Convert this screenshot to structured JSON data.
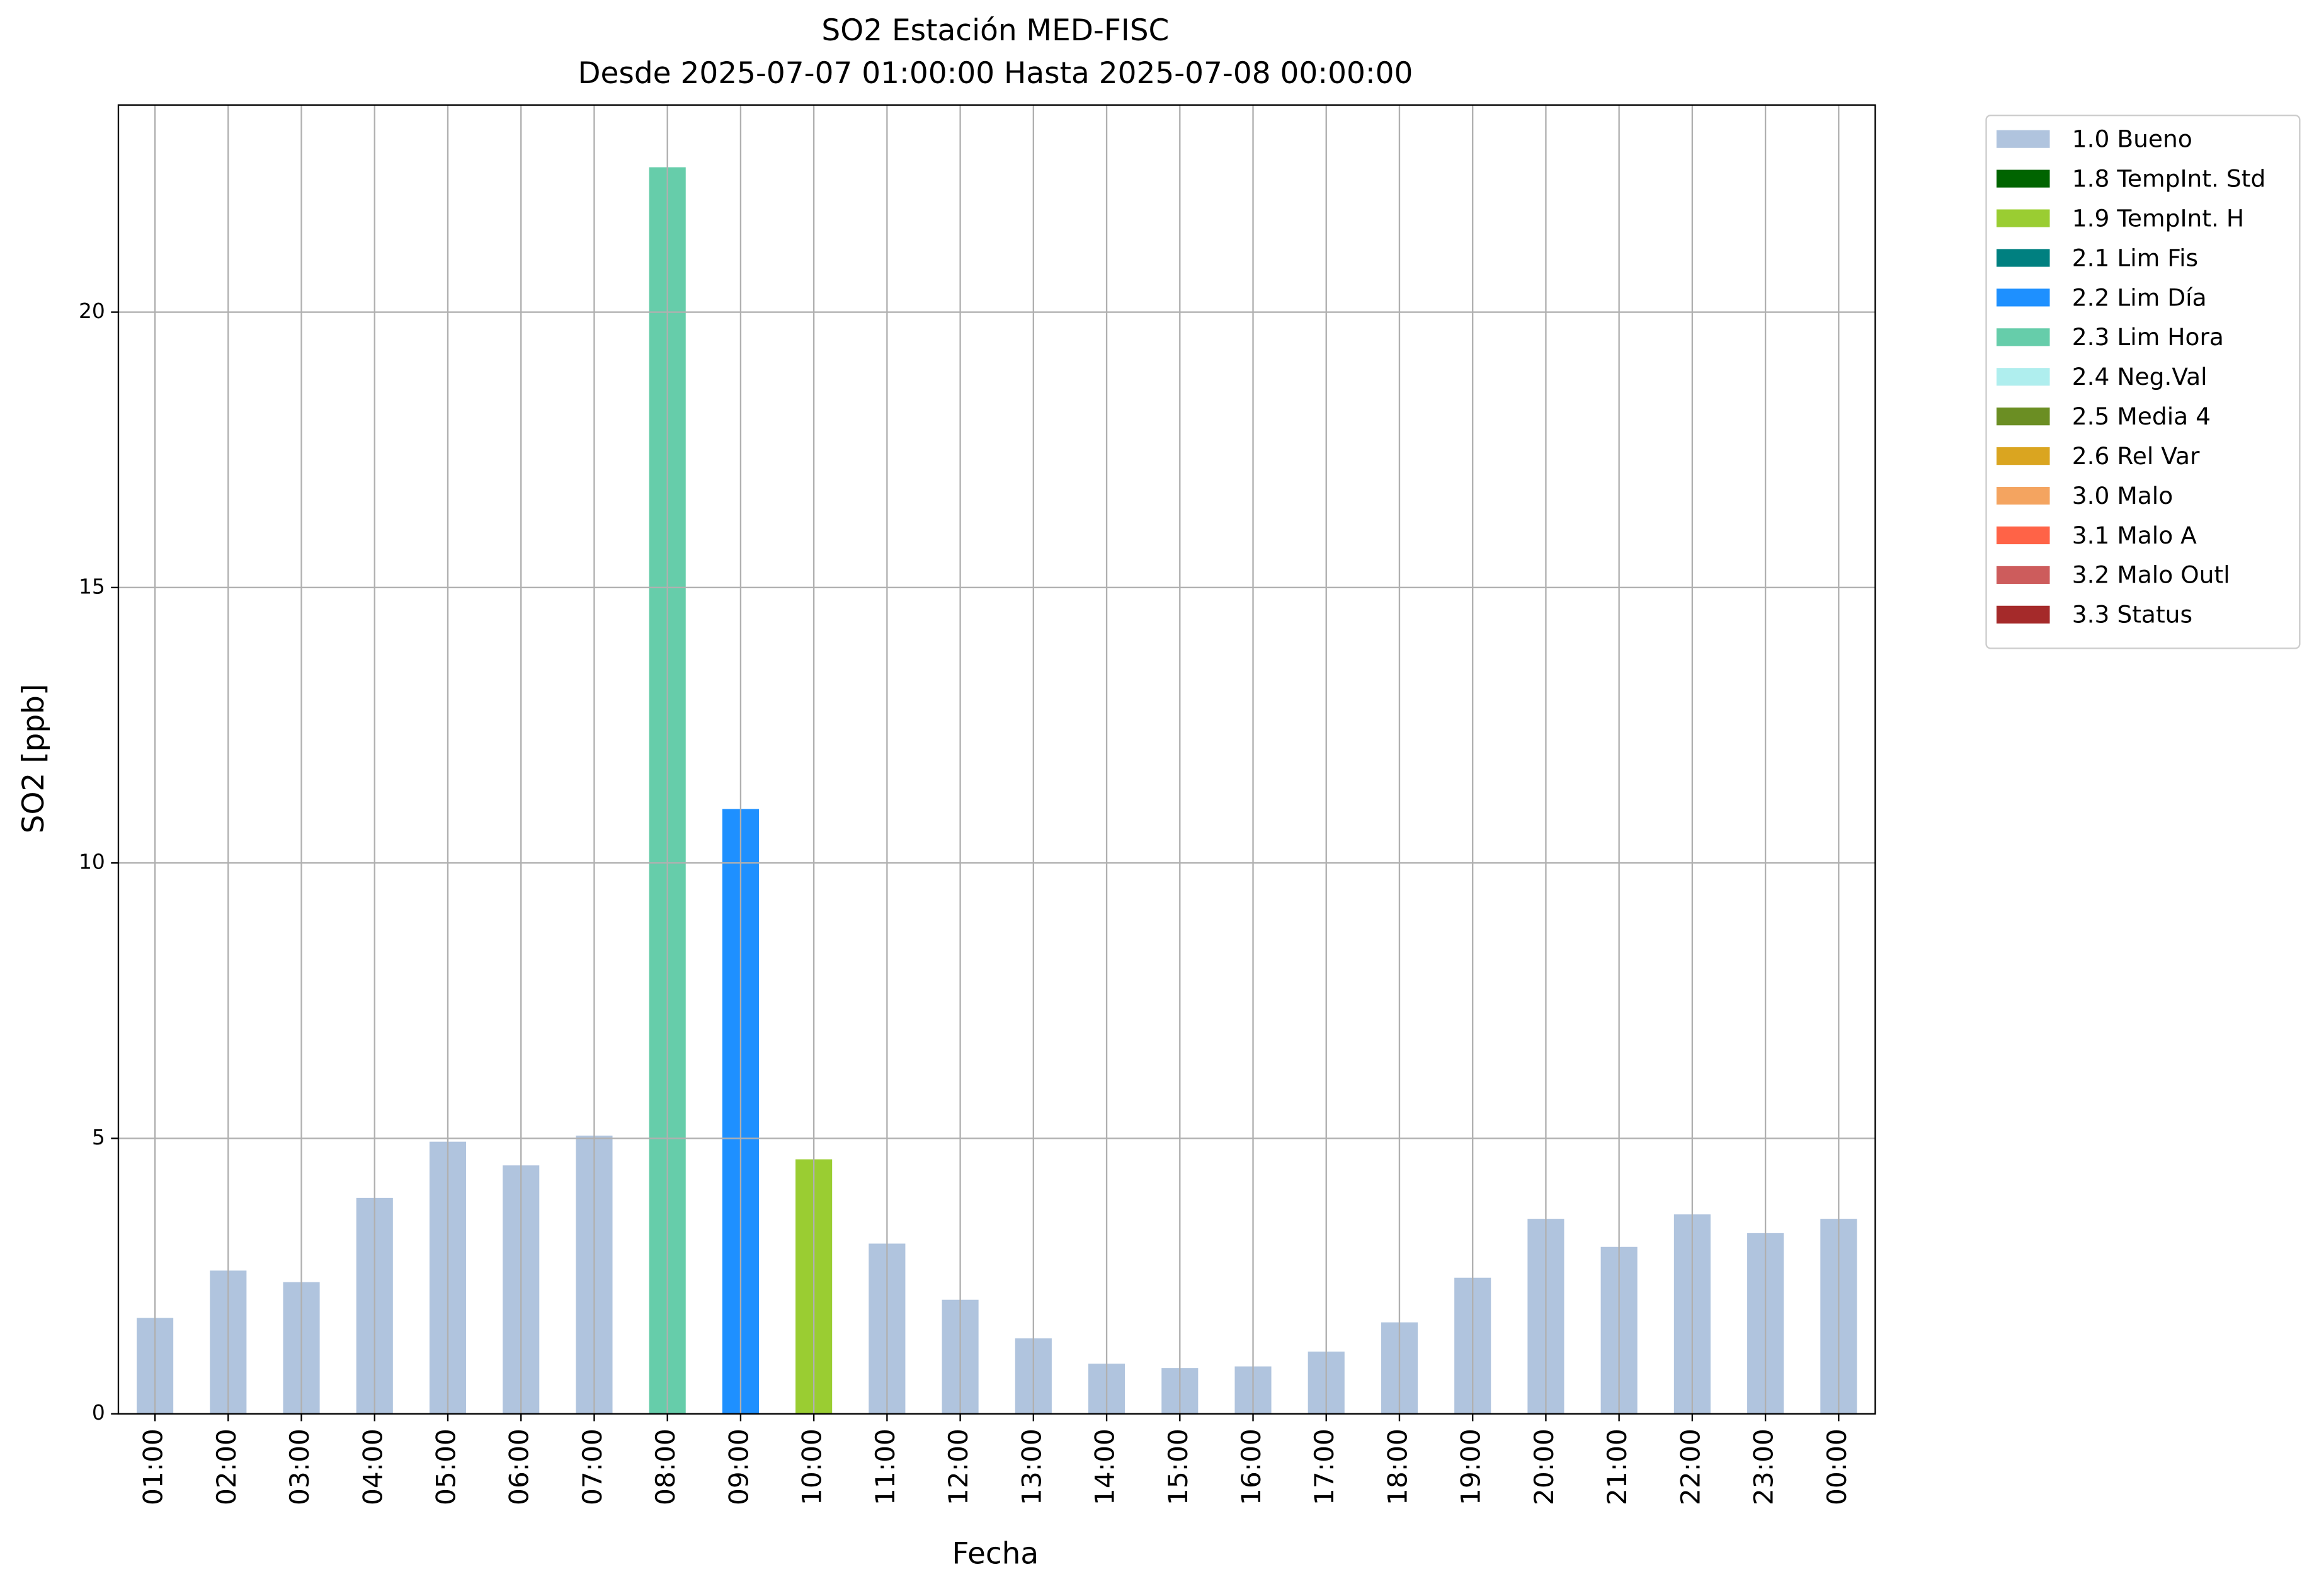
{
  "chart_data": {
    "type": "bar",
    "stacked": true,
    "title": "SO2 Estación MED-FISC",
    "subtitle": "Desde 2025-07-07 01:00:00 Hasta 2025-07-08 00:00:00",
    "x_label": "Fecha",
    "y_label": "SO2 [ppb]",
    "categories": [
      "01:00",
      "02:00",
      "03:00",
      "04:00",
      "05:00",
      "06:00",
      "07:00",
      "08:00",
      "09:00",
      "10:00",
      "11:00",
      "12:00",
      "13:00",
      "14:00",
      "15:00",
      "16:00",
      "17:00",
      "18:00",
      "19:00",
      "20:00",
      "21:00",
      "22:00",
      "23:00",
      "00:00"
    ],
    "ylim": [
      0,
      23.76
    ],
    "yticks": [
      0,
      5,
      10,
      15,
      20
    ],
    "grid": true,
    "legend": "outside-upper-right",
    "series": [
      {
        "name": "1.0 Bueno",
        "color": "#b0c4de",
        "values": [
          1.74,
          2.6,
          2.39,
          3.92,
          4.94,
          4.51,
          5.05,
          null,
          null,
          null,
          3.09,
          2.07,
          1.37,
          0.91,
          0.83,
          0.86,
          1.13,
          1.66,
          2.47,
          3.54,
          3.03,
          3.62,
          3.28,
          3.54
        ]
      },
      {
        "name": "1.8 TempInt. Std",
        "color": "#006400",
        "values": [
          null,
          null,
          null,
          null,
          null,
          null,
          null,
          null,
          null,
          null,
          null,
          null,
          null,
          null,
          null,
          null,
          null,
          null,
          null,
          null,
          null,
          null,
          null,
          null
        ]
      },
      {
        "name": "1.9 TempInt. H",
        "color": "#9acd32",
        "values": [
          null,
          null,
          null,
          null,
          null,
          null,
          null,
          null,
          null,
          4.62,
          null,
          null,
          null,
          null,
          null,
          null,
          null,
          null,
          null,
          null,
          null,
          null,
          null,
          null
        ]
      },
      {
        "name": "2.1 Lim Fis",
        "color": "#008080",
        "values": [
          null,
          null,
          null,
          null,
          null,
          null,
          null,
          null,
          null,
          null,
          null,
          null,
          null,
          null,
          null,
          null,
          null,
          null,
          null,
          null,
          null,
          null,
          null,
          null
        ]
      },
      {
        "name": "2.2 Lim Día",
        "color": "#1e90ff",
        "values": [
          null,
          null,
          null,
          null,
          null,
          null,
          null,
          null,
          10.98,
          null,
          null,
          null,
          null,
          null,
          null,
          null,
          null,
          null,
          null,
          null,
          null,
          null,
          null,
          null
        ]
      },
      {
        "name": "2.3 Lim Hora",
        "color": "#66cdaa",
        "values": [
          null,
          null,
          null,
          null,
          null,
          null,
          null,
          22.63,
          null,
          null,
          null,
          null,
          null,
          null,
          null,
          null,
          null,
          null,
          null,
          null,
          null,
          null,
          null,
          null
        ]
      },
      {
        "name": "2.4 Neg.Val",
        "color": "#afeeee",
        "values": [
          null,
          null,
          null,
          null,
          null,
          null,
          null,
          null,
          null,
          null,
          null,
          null,
          null,
          null,
          null,
          null,
          null,
          null,
          null,
          null,
          null,
          null,
          null,
          null
        ]
      },
      {
        "name": "2.5 Media 4",
        "color": "#6b8e23",
        "values": [
          null,
          null,
          null,
          null,
          null,
          null,
          null,
          null,
          null,
          null,
          null,
          null,
          null,
          null,
          null,
          null,
          null,
          null,
          null,
          null,
          null,
          null,
          null,
          null
        ]
      },
      {
        "name": "2.6 Rel Var",
        "color": "#daa520",
        "values": [
          null,
          null,
          null,
          null,
          null,
          null,
          null,
          null,
          null,
          null,
          null,
          null,
          null,
          null,
          null,
          null,
          null,
          null,
          null,
          null,
          null,
          null,
          null,
          null
        ]
      },
      {
        "name": "3.0 Malo",
        "color": "#f4a460",
        "values": [
          null,
          null,
          null,
          null,
          null,
          null,
          null,
          null,
          null,
          null,
          null,
          null,
          null,
          null,
          null,
          null,
          null,
          null,
          null,
          null,
          null,
          null,
          null,
          null
        ]
      },
      {
        "name": "3.1 Malo A",
        "color": "#ff6347",
        "values": [
          null,
          null,
          null,
          null,
          null,
          null,
          null,
          null,
          null,
          null,
          null,
          null,
          null,
          null,
          null,
          null,
          null,
          null,
          null,
          null,
          null,
          null,
          null,
          null
        ]
      },
      {
        "name": "3.2 Malo Outl",
        "color": "#cd5c5c",
        "values": [
          null,
          null,
          null,
          null,
          null,
          null,
          null,
          null,
          null,
          null,
          null,
          null,
          null,
          null,
          null,
          null,
          null,
          null,
          null,
          null,
          null,
          null,
          null,
          null
        ]
      },
      {
        "name": "3.3 Status",
        "color": "#a52a2a",
        "values": [
          null,
          null,
          null,
          null,
          null,
          null,
          null,
          null,
          null,
          null,
          null,
          null,
          null,
          null,
          null,
          null,
          null,
          null,
          null,
          null,
          null,
          null,
          null,
          null
        ]
      }
    ]
  }
}
